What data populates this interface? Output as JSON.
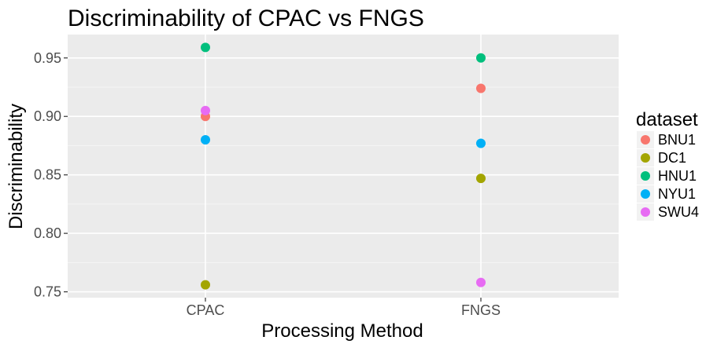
{
  "chart_data": {
    "type": "scatter",
    "title": "Discriminability of CPAC vs FNGS",
    "xlabel": "Processing Method",
    "ylabel": "Discriminability",
    "categories": [
      "CPAC",
      "FNGS"
    ],
    "ylim": [
      0.745,
      0.97
    ],
    "yticks": [
      0.75,
      0.8,
      0.85,
      0.9,
      0.95
    ],
    "ytick_labels": [
      "0.75",
      "0.80",
      "0.85",
      "0.90",
      "0.95"
    ],
    "grid": true,
    "legend": {
      "title": "dataset",
      "position": "right"
    },
    "series": [
      {
        "name": "BNU1",
        "color": "#F8766D",
        "values": [
          0.9,
          0.924
        ]
      },
      {
        "name": "DC1",
        "color": "#A3A500",
        "values": [
          0.756,
          0.847
        ]
      },
      {
        "name": "HNU1",
        "color": "#00BF7D",
        "values": [
          0.959,
          0.95
        ]
      },
      {
        "name": "NYU1",
        "color": "#00B0F6",
        "values": [
          0.88,
          0.877
        ]
      },
      {
        "name": "SWU4",
        "color": "#E76BF3",
        "values": [
          0.905,
          0.758
        ]
      }
    ]
  }
}
